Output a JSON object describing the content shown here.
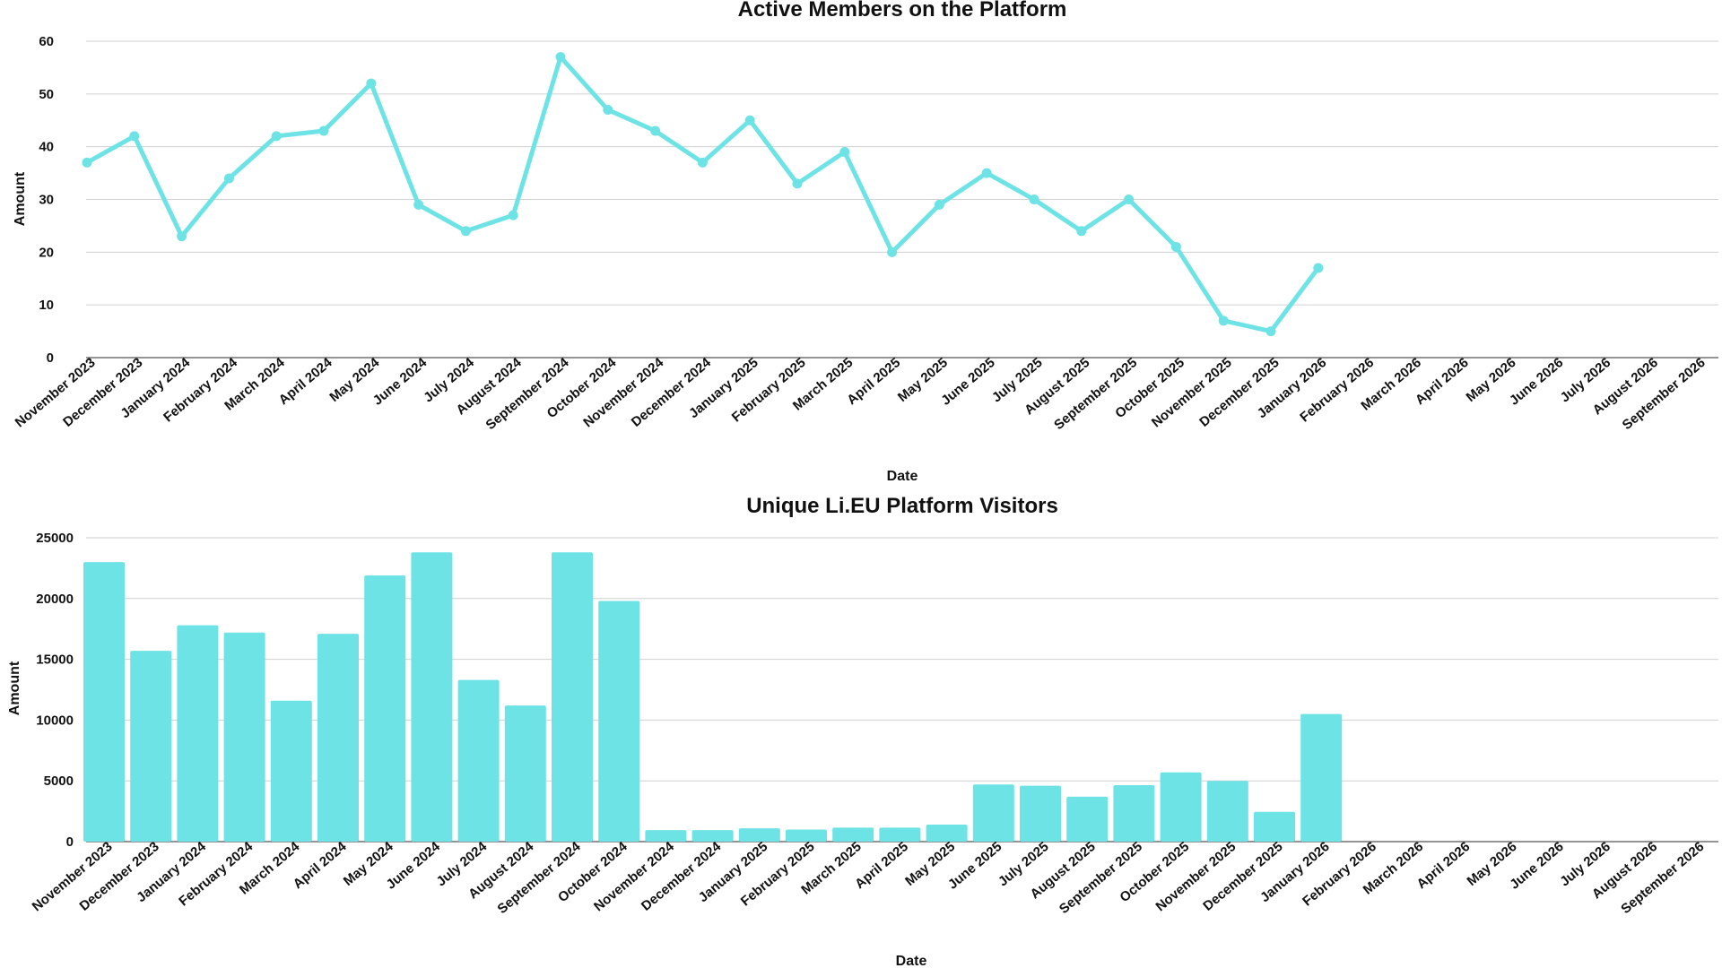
{
  "chart_data": [
    {
      "type": "line",
      "title": "Active Members on the Platform",
      "xlabel": "Date",
      "ylabel": "Amount",
      "ylim": [
        0,
        60
      ],
      "yticks": [
        0,
        10,
        20,
        30,
        40,
        50,
        60
      ],
      "color": "#6ee3e6",
      "categories": [
        "November 2023",
        "December 2023",
        "January 2024",
        "February 2024",
        "March 2024",
        "April 2024",
        "May 2024",
        "June 2024",
        "July 2024",
        "August 2024",
        "September 2024",
        "October 2024",
        "November 2024",
        "December 2024",
        "January 2025",
        "February 2025",
        "March 2025",
        "April 2025",
        "May 2025",
        "June 2025",
        "July 2025",
        "August 2025",
        "September 2025",
        "October 2025",
        "November 2025",
        "December 2025",
        "January 2026",
        "February 2026",
        "March 2026",
        "April 2026",
        "May 2026",
        "June 2026",
        "July 2026",
        "August 2026",
        "September 2026"
      ],
      "values": [
        37,
        42,
        23,
        34,
        42,
        43,
        52,
        29,
        24,
        27,
        57,
        47,
        43,
        37,
        45,
        33,
        39,
        20,
        29,
        35,
        30,
        24,
        30,
        21,
        7,
        5,
        17,
        null,
        null,
        null,
        null,
        null,
        null,
        null,
        null
      ]
    },
    {
      "type": "bar",
      "title": "Unique Li.EU Platform Visitors",
      "xlabel": "Date",
      "ylabel": "Amount",
      "ylim": [
        0,
        25000
      ],
      "yticks": [
        0,
        5000,
        10000,
        15000,
        20000,
        25000
      ],
      "color": "#6ee3e6",
      "categories": [
        "November 2023",
        "December 2023",
        "January 2024",
        "February 2024",
        "March 2024",
        "April 2024",
        "May 2024",
        "June 2024",
        "July 2024",
        "August 2024",
        "September 2024",
        "October 2024",
        "November 2024",
        "December 2024",
        "January 2025",
        "February 2025",
        "March 2025",
        "April 2025",
        "May 2025",
        "June 2025",
        "July 2025",
        "August 2025",
        "September 2025",
        "October 2025",
        "November 2025",
        "December 2025",
        "January 2026",
        "February 2026",
        "March 2026",
        "April 2026",
        "May 2026",
        "June 2026",
        "July 2026",
        "August 2026",
        "September 2026"
      ],
      "values": [
        23000,
        15700,
        17800,
        17200,
        11600,
        17100,
        21900,
        23800,
        13300,
        11200,
        23800,
        19800,
        950,
        950,
        1100,
        1000,
        1150,
        1150,
        1400,
        4700,
        4600,
        3700,
        4650,
        5700,
        5000,
        2450,
        10500,
        null,
        null,
        null,
        null,
        null,
        null,
        null,
        null
      ]
    }
  ]
}
